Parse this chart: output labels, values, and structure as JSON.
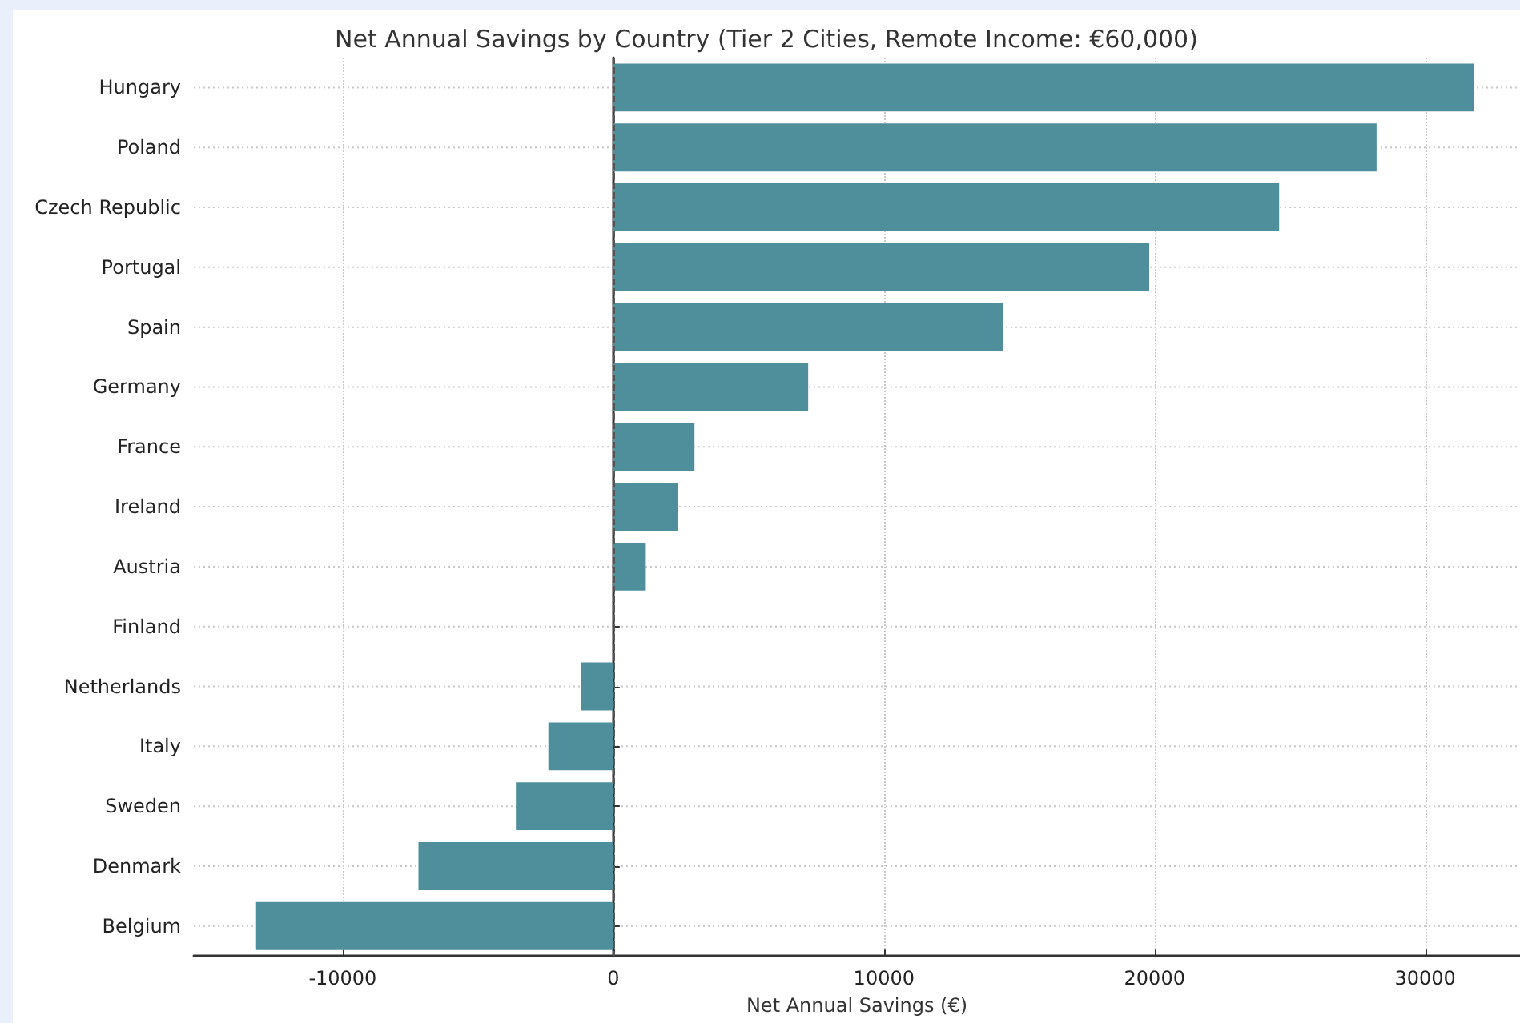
{
  "chart_data": {
    "type": "bar",
    "orientation": "horizontal",
    "title": "Net Annual Savings by Country (Tier 2 Cities, Remote Income: €60,000)",
    "xlabel": "Net Annual Savings (€)",
    "categories": [
      "Hungary",
      "Poland",
      "Czech Republic",
      "Portugal",
      "Spain",
      "Germany",
      "France",
      "Ireland",
      "Austria",
      "Finland",
      "Netherlands",
      "Italy",
      "Sweden",
      "Denmark",
      "Belgium"
    ],
    "values": [
      31800,
      28200,
      24600,
      19800,
      14400,
      7200,
      3000,
      2400,
      1200,
      0,
      -1200,
      -2400,
      -3600,
      -7200,
      -13200
    ],
    "color": "#4f8f9c",
    "xlim": [
      -15500,
      33500
    ],
    "xticks": [
      -10000,
      0,
      10000,
      20000,
      30000
    ],
    "ref_lines": [
      {
        "axis": "x",
        "value": 0,
        "color": "#555555",
        "line_style": "dashed"
      }
    ],
    "grid": true
  }
}
